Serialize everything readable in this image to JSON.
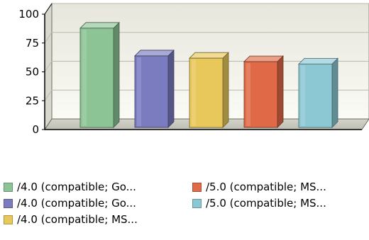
{
  "chart_data": {
    "type": "bar",
    "categories": [
      "/4.0 (compatible; Go...",
      "/4.0 (compatible; Go...",
      "/4.0 (compatible; MS...",
      "/5.0 (compatible; MS...",
      "/5.0 (compatible; MS..."
    ],
    "values": [
      86,
      62,
      60,
      57,
      55
    ],
    "colors": [
      "#8cc496",
      "#7b7bc0",
      "#e8c85a",
      "#e06a48",
      "#8cc8d4"
    ],
    "ylim": [
      0,
      100
    ],
    "yticks": [
      "0",
      "25",
      "50",
      "75",
      "100"
    ],
    "grid": true,
    "legend": "bottom",
    "style": "3d"
  },
  "legend": {
    "items": [
      {
        "label": "/4.0 (compatible; Go...",
        "color": "#8cc496"
      },
      {
        "label": "/4.0 (compatible; Go...",
        "color": "#7b7bc0"
      },
      {
        "label": "/4.0 (compatible; MS...",
        "color": "#e8c85a"
      },
      {
        "label": "/5.0 (compatible; MS...",
        "color": "#e06a48"
      },
      {
        "label": "/5.0 (compatible; MS...",
        "color": "#8cc8d4"
      }
    ]
  }
}
